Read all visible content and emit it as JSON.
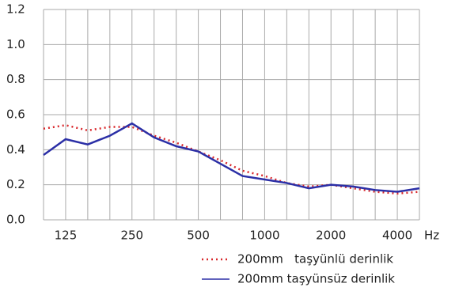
{
  "chart_data": {
    "type": "line",
    "categories": [
      null,
      "125",
      null,
      null,
      "250",
      null,
      null,
      "500",
      null,
      null,
      "1000",
      null,
      null,
      "2000",
      null,
      null,
      "4000",
      null
    ],
    "x_unit": "Hz",
    "series": [
      {
        "name": "200mm   taşyünlü derinlik",
        "color": "#d8282c",
        "style": "dotted",
        "values": [
          0.52,
          0.54,
          0.51,
          0.53,
          0.53,
          0.48,
          0.44,
          0.39,
          0.34,
          0.28,
          0.25,
          0.21,
          0.19,
          0.2,
          0.18,
          0.16,
          0.15,
          0.16
        ]
      },
      {
        "name": "200mm taşyünsüz derinlik",
        "color": "#2b2fa6",
        "style": "solid",
        "values": [
          0.37,
          0.46,
          0.43,
          0.48,
          0.55,
          0.47,
          0.42,
          0.39,
          0.32,
          0.25,
          0.23,
          0.21,
          0.18,
          0.2,
          0.19,
          0.17,
          0.16,
          0.18
        ]
      }
    ],
    "ylim": [
      0,
      1.2
    ],
    "yticks": [
      {
        "value": 0,
        "label": "0.0"
      },
      0.2,
      0.4,
      0.6,
      0.8,
      {
        "value": 1,
        "label": "1.0"
      },
      1.2
    ],
    "grid": true,
    "legend": "bottom-right"
  }
}
